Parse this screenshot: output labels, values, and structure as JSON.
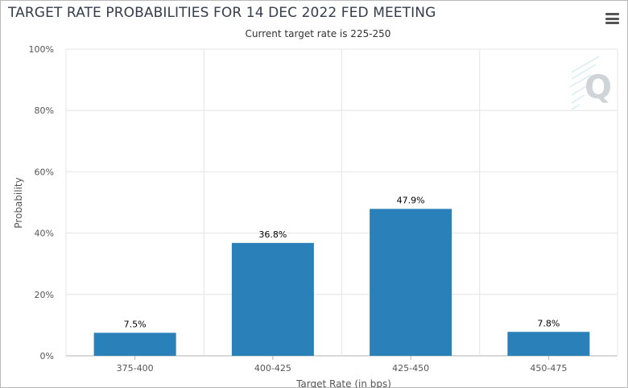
{
  "header": {
    "title": "TARGET RATE PROBABILITIES FOR 14 DEC 2022 FED MEETING",
    "subtitle": "Current target rate is 225-250"
  },
  "menu": {
    "icon": "hamburger-menu-icon"
  },
  "watermark": {
    "letter": "Q"
  },
  "colors": {
    "bar": "#2a80b9",
    "grid": "#e4e4e4",
    "axis": "#b0b0b0",
    "text": "#555555"
  },
  "chart_data": {
    "type": "bar",
    "categories": [
      "375-400",
      "400-425",
      "425-450",
      "450-475"
    ],
    "values": [
      7.5,
      36.8,
      47.9,
      7.8
    ],
    "data_labels": [
      "7.5%",
      "36.8%",
      "47.9%",
      "7.8%"
    ],
    "title": "TARGET RATE PROBABILITIES FOR 14 DEC 2022 FED MEETING",
    "subtitle": "Current target rate is 225-250",
    "xlabel": "Target Rate (in bps)",
    "ylabel": "Probability",
    "ylim": [
      0,
      100
    ],
    "yticks": [
      "0%",
      "20%",
      "40%",
      "60%",
      "80%",
      "100%"
    ],
    "grid": true
  }
}
